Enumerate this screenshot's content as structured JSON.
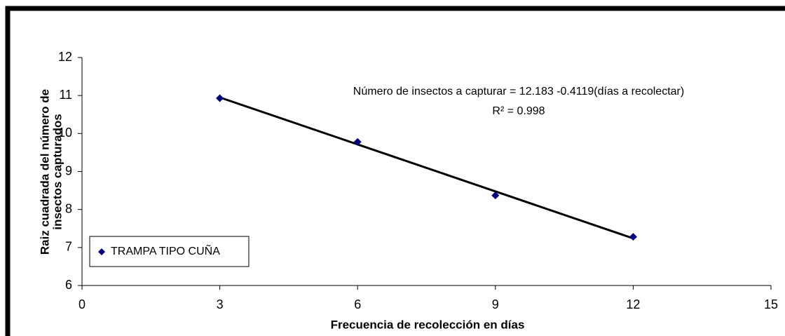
{
  "chart_data": {
    "type": "scatter",
    "xlabel": "Frecuencia de recolección en días",
    "ylabel": [
      "Raiz cuadrada del número de",
      "insectos capturados"
    ],
    "annotations": [
      "Número de insectos a capturar = 12.183 -0.4119(días a recolectar)",
      "R² = 0.998"
    ],
    "series": [
      {
        "name": "TRAMPA TIPO CUÑA",
        "color": "#000080",
        "x": [
          3,
          6,
          9,
          12
        ],
        "values": [
          10.93,
          9.78,
          8.37,
          7.28
        ]
      }
    ],
    "trendline": {
      "color": "#000000",
      "x": [
        3,
        12
      ],
      "values": [
        10.95,
        7.24
      ]
    },
    "xlim": [
      0,
      15
    ],
    "xticks": [
      0,
      3,
      6,
      9,
      12,
      15
    ],
    "ylim": [
      6,
      12
    ],
    "yticks": [
      6,
      7,
      8,
      9,
      10,
      11,
      12
    ],
    "legend": "bottom-left"
  }
}
